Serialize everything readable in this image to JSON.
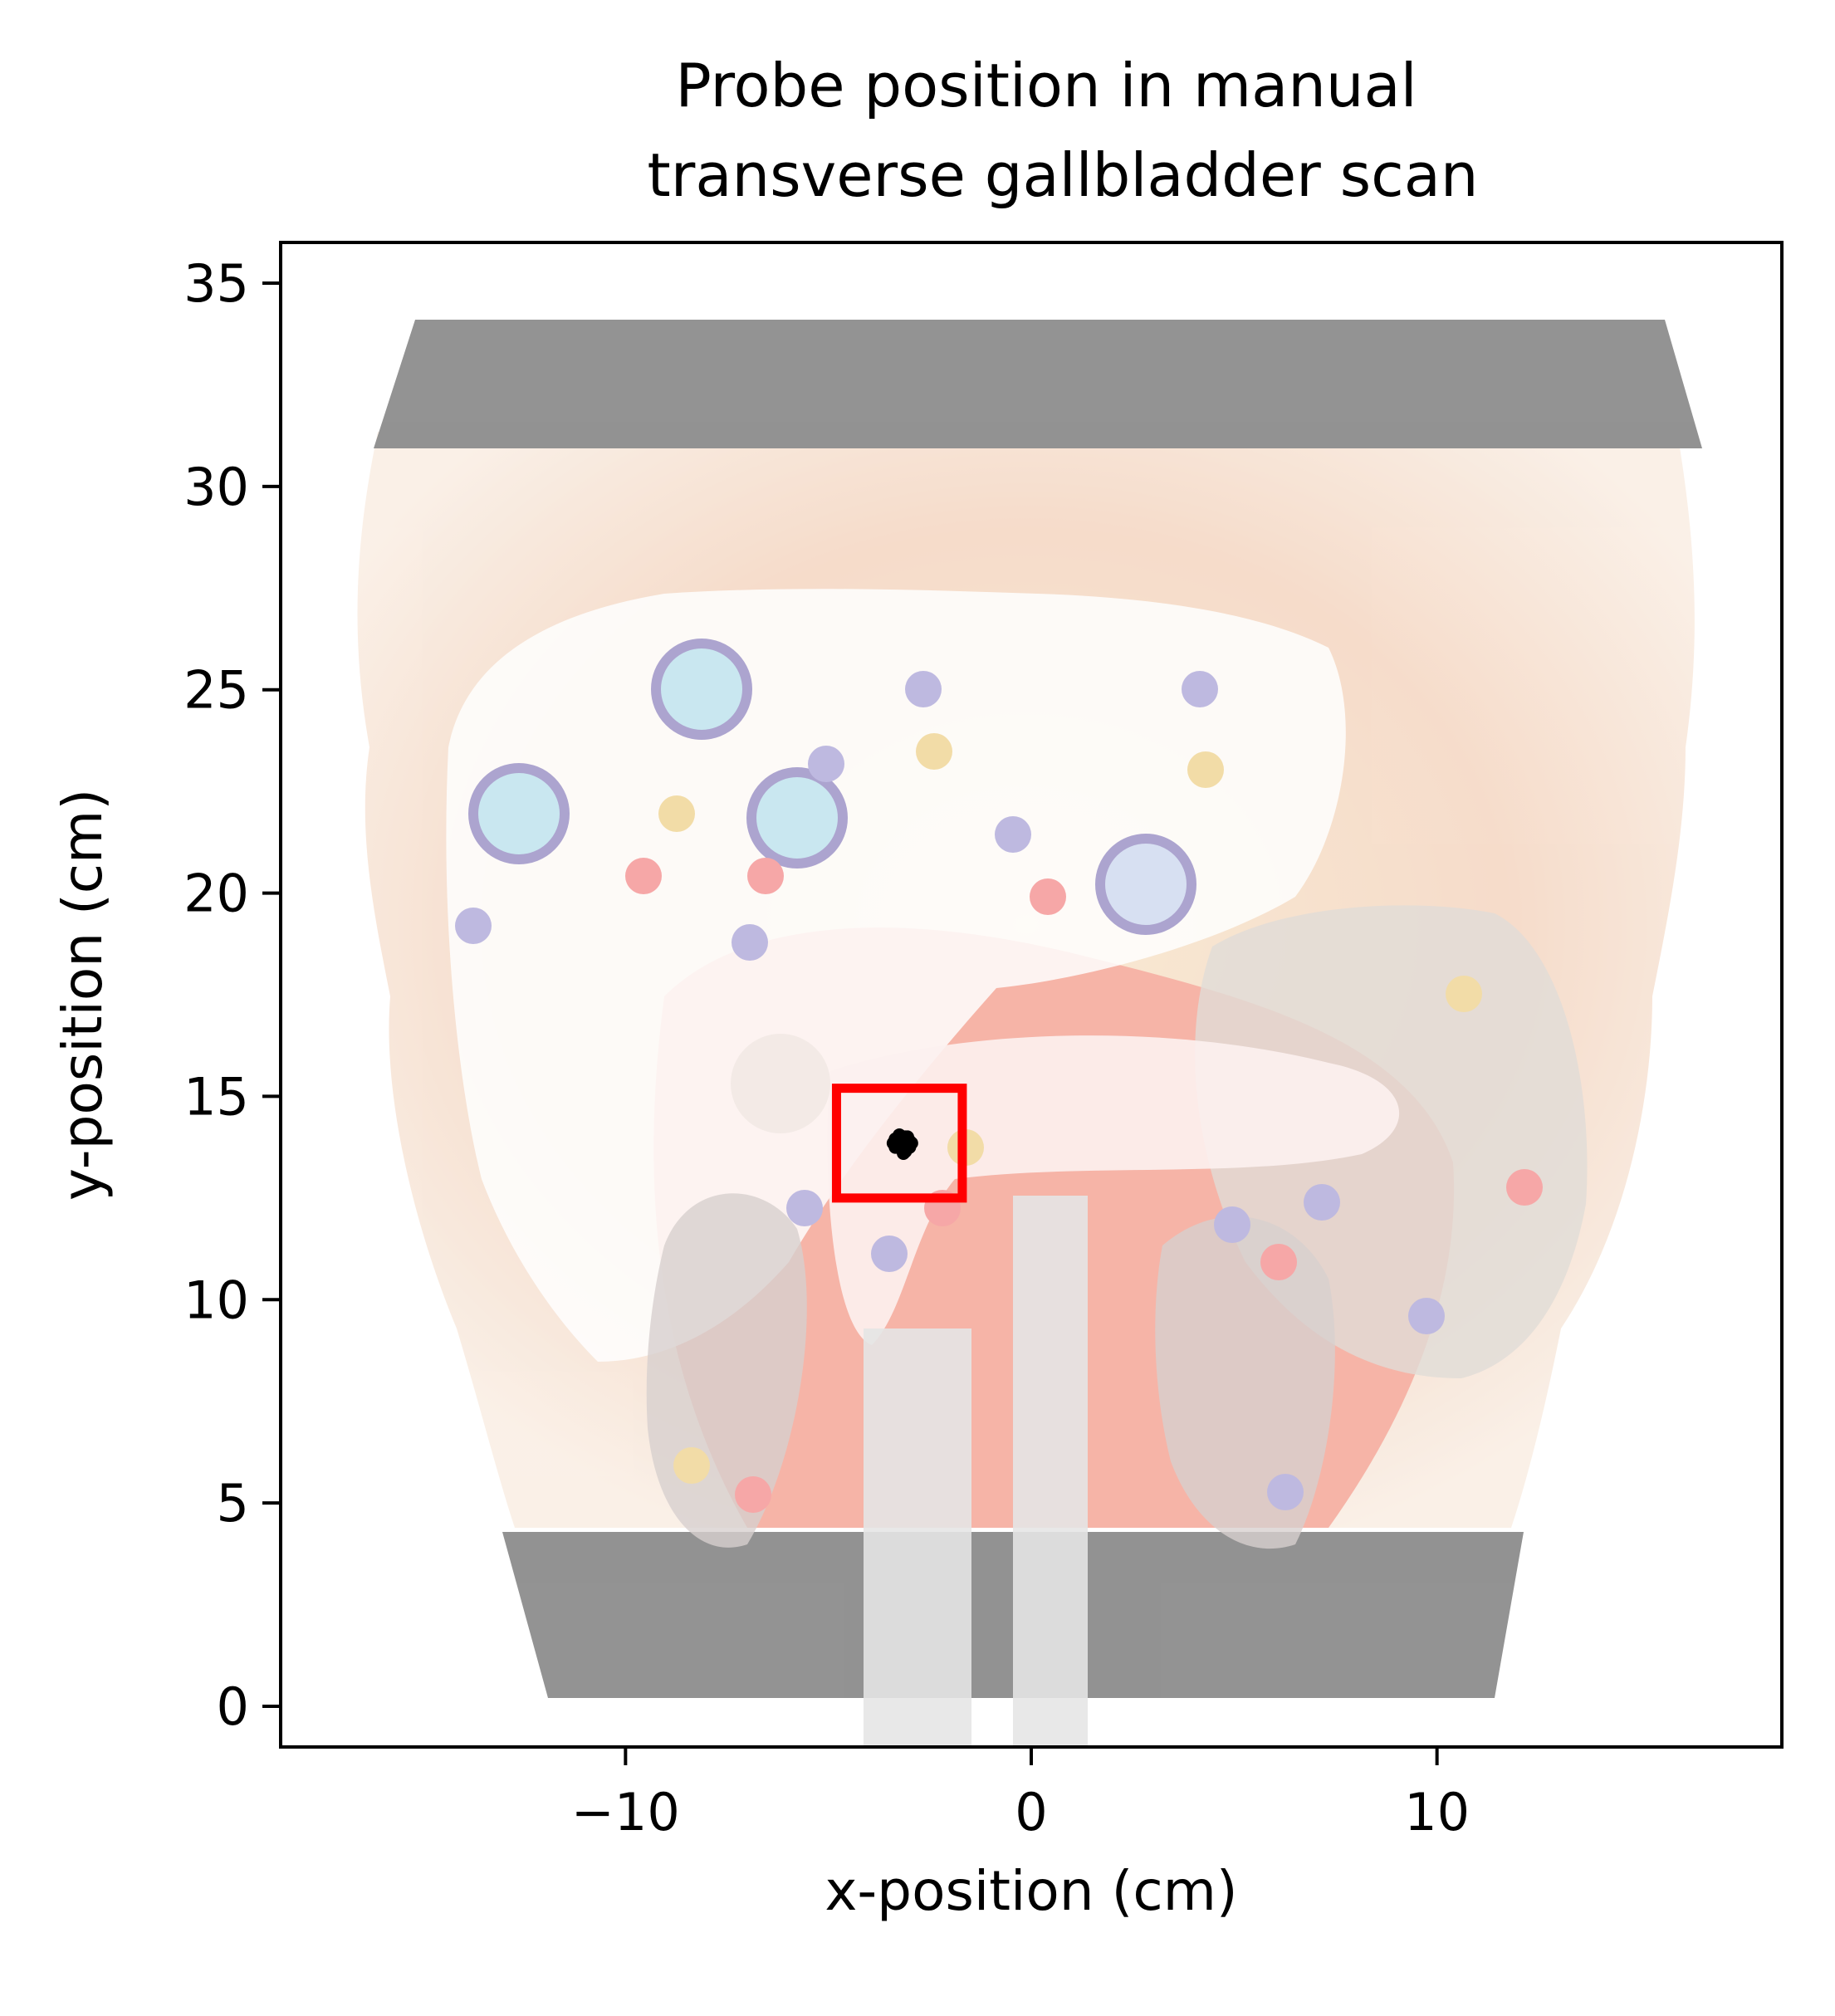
{
  "chart_data": {
    "type": "scatter",
    "title_lines": [
      "Probe position in manual",
      "transverse gallbladder scan"
    ],
    "xlabel": "x-position (cm)",
    "ylabel": "y-position (cm)",
    "xlim": [
      -18.5,
      18.5
    ],
    "ylim": [
      -1,
      36
    ],
    "xticks": [
      -10,
      0,
      10
    ],
    "xtick_labels": [
      "−10",
      "0",
      "10"
    ],
    "yticks": [
      0,
      5,
      10,
      15,
      20,
      25,
      30,
      35
    ],
    "ytick_labels": [
      "0",
      "5",
      "10",
      "15",
      "20",
      "25",
      "30",
      "35"
    ],
    "grid": false,
    "legend": "none",
    "background_image": "abdominal-phantom-with-liver-anatomy-overlay",
    "target_region": {
      "x": [
        -4.8,
        -1.7
      ],
      "y": [
        12.5,
        15.2
      ],
      "color": "#ff0000"
    },
    "series": [
      {
        "color": "#000000",
        "x": [
          -3.4,
          -3.35,
          -3.3,
          -3.2,
          -3.15,
          -3.1,
          -3.05,
          -3.0,
          -3.1,
          -3.2,
          -3.3,
          -3.25,
          -3.0,
          -2.95,
          -3.15,
          -3.35,
          -3.05,
          -3.2
        ],
        "y": [
          13.85,
          13.95,
          13.75,
          13.9,
          13.7,
          14.0,
          13.8,
          13.9,
          13.65,
          13.8,
          13.9,
          14.05,
          13.75,
          13.85,
          13.6,
          13.75,
          14.0,
          13.7
        ]
      }
    ]
  },
  "colors": {
    "axis": "#000000",
    "target": "#ff0000",
    "points": "#000000"
  }
}
